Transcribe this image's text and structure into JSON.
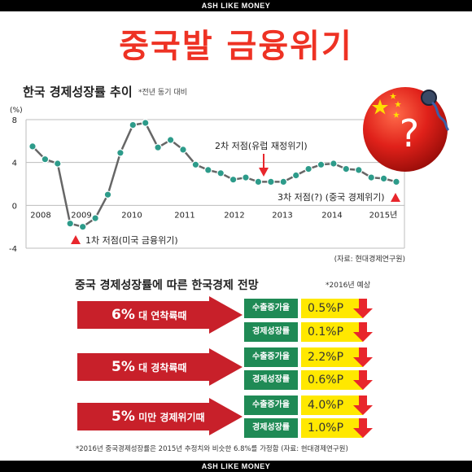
{
  "header": {
    "brand": "ASH LIKE MONEY"
  },
  "footer": {
    "brand": "ASH LIKE MONEY"
  },
  "title": "중국발 금융위기",
  "chart_data": {
    "type": "line",
    "title": "한국 경제성장률 추이",
    "subtitle": "*전년 동기 대비",
    "ylabel": "(%)",
    "ylim": [
      -4,
      8
    ],
    "yticks": [
      "8",
      "4",
      "0",
      "-4"
    ],
    "xlabels": [
      "2008",
      "2009",
      "2010",
      "2011",
      "2012",
      "2013",
      "2014",
      "2015년"
    ],
    "grid": true,
    "series": [
      {
        "values": [
          5.5,
          4.3,
          3.9,
          -1.7,
          -2.0,
          -1.2,
          1.0,
          4.9,
          7.5,
          7.7,
          5.4,
          6.1,
          5.2,
          3.8,
          3.3,
          3.0,
          2.4,
          2.6,
          2.2,
          2.2,
          2.2,
          2.8,
          3.4,
          3.8,
          3.9,
          3.4,
          3.3,
          2.6,
          2.5,
          2.2
        ]
      }
    ],
    "annotations": [
      {
        "text": "1차 저점(미국 금융위기)",
        "marker": "up-triangle"
      },
      {
        "text": "2차 저점(유럽 재정위기)",
        "marker": "down-arrow"
      },
      {
        "text": "3차 저점(?) (중국 경제위기)",
        "marker": "up-triangle"
      }
    ],
    "source": "(자료: 현대경제연구원)",
    "colors": {
      "line": "#666666",
      "marker": "#2d9b8a",
      "triangle": "#e8262c",
      "arrow": "#e8262c"
    }
  },
  "outlook": {
    "title": "중국 경제성장률에 따른 한국경제 전망",
    "note": "*2016년 예상",
    "scenarios": [
      {
        "rate": "6%",
        "label": "대 연착륙때",
        "metrics": [
          {
            "name": "수출증가율",
            "value": "0.5%P"
          },
          {
            "name": "경제성장률",
            "value": "0.1%P"
          }
        ]
      },
      {
        "rate": "5%",
        "label": "대 경착륙때",
        "metrics": [
          {
            "name": "수출증가율",
            "value": "2.2%P"
          },
          {
            "name": "경제성장률",
            "value": "0.6%P"
          }
        ]
      },
      {
        "rate": "5%",
        "label": "미만 경제위기때",
        "metrics": [
          {
            "name": "수출증가율",
            "value": "4.0%P"
          },
          {
            "name": "경제성장률",
            "value": "1.0%P"
          }
        ]
      }
    ],
    "footnote": "*2016년 중국경제성장률은 2015년 추정치와 비슷한 6.8%를 가정함 (자료: 현대경제연구원)",
    "colors": {
      "arrow": "#c8202a",
      "metric_name_bg": "#1f8a55",
      "metric_value_bg": "#ffe800",
      "down_arrow": "#e8262c"
    }
  },
  "decoration": {
    "ball": "china-flag-ball-icon",
    "symbol": "?"
  }
}
